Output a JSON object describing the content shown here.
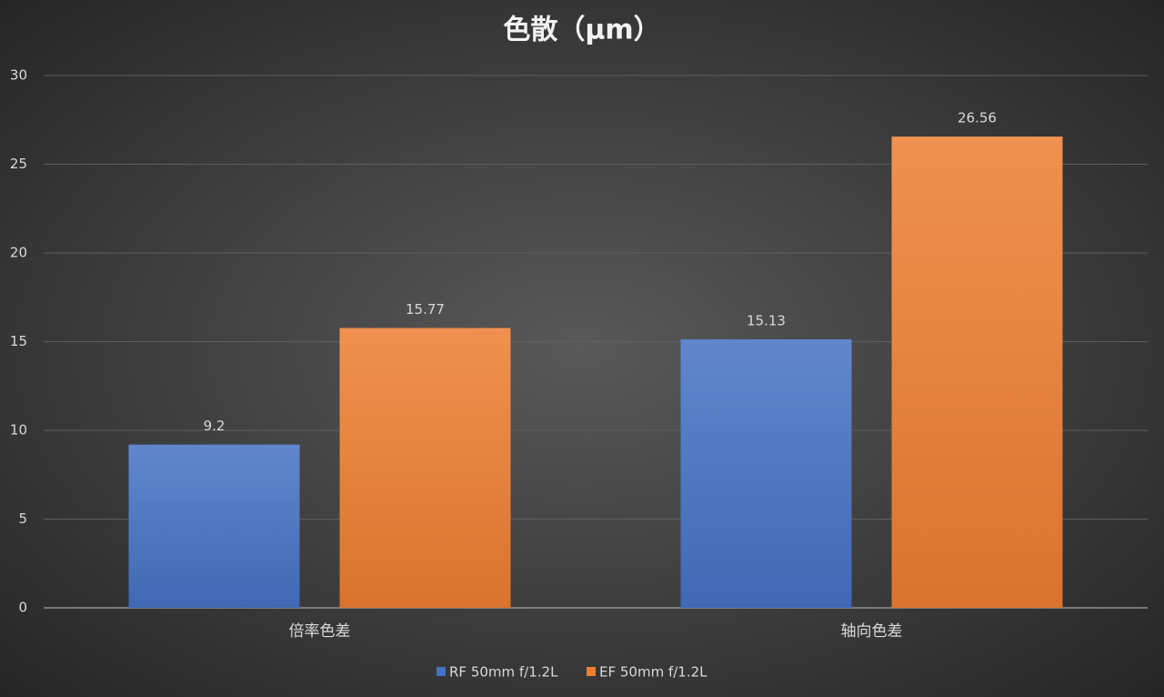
{
  "chart_data": {
    "type": "bar",
    "title": "色散（μm）",
    "categories": [
      "倍率色差",
      "轴向色差"
    ],
    "series": [
      {
        "name": "RF 50mm f/1.2L",
        "color": "#4472c4",
        "values": [
          9.2,
          15.13
        ]
      },
      {
        "name": "EF 50mm f/1.2L",
        "color": "#ed7d31",
        "values": [
          15.77,
          26.56
        ]
      }
    ],
    "ylim": [
      0,
      30
    ],
    "yticks": [
      0,
      5,
      10,
      15,
      20,
      25,
      30
    ],
    "grid": true,
    "legend": "bottom"
  }
}
